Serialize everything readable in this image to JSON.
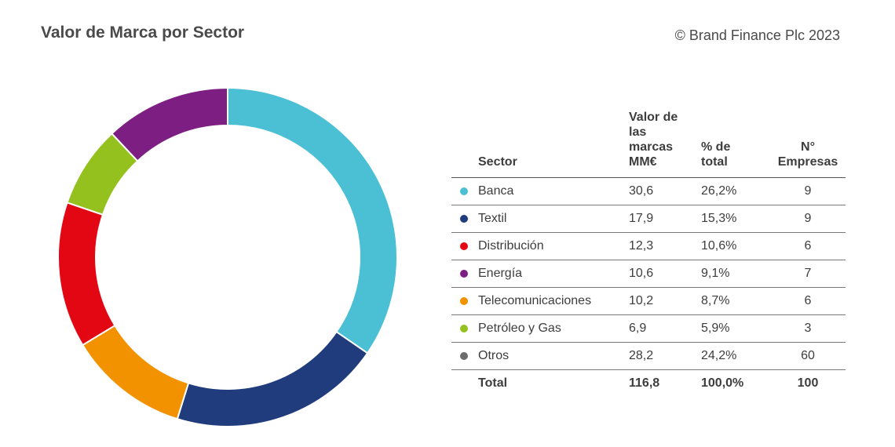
{
  "title": "Valor de Marca por Sector",
  "copyright": "© Brand Finance Plc 2023",
  "table": {
    "headers": {
      "sector": "Sector",
      "valor": "Valor de las marcas MM€",
      "pct": "% de total",
      "empresas": "N° Empresas"
    },
    "rows": [
      {
        "sector": "Banca",
        "valor": "30,6",
        "pct": "26,2%",
        "empresas": "9"
      },
      {
        "sector": "Textil",
        "valor": "17,9",
        "pct": "15,3%",
        "empresas": "9"
      },
      {
        "sector": "Distribución",
        "valor": "12,3",
        "pct": "10,6%",
        "empresas": "6"
      },
      {
        "sector": "Energía",
        "valor": "10,6",
        "pct": "9,1%",
        "empresas": "7"
      },
      {
        "sector": "Telecomunicaciones",
        "valor": "10,2",
        "pct": "8,7%",
        "empresas": "6"
      },
      {
        "sector": "Petróleo y Gas",
        "valor": "6,9",
        "pct": "5,9%",
        "empresas": "3"
      },
      {
        "sector": "Otros",
        "valor": "28,2",
        "pct": "24,2%",
        "empresas": "60"
      }
    ],
    "total": {
      "label": "Total",
      "valor": "116,8",
      "pct": "100,0%",
      "empresas": "100"
    }
  },
  "chart_data": {
    "type": "pie",
    "title": "Valor de Marca por Sector",
    "categories": [
      "Banca",
      "Textil",
      "Distribución",
      "Energía",
      "Telecomunicaciones",
      "Petróleo y Gas",
      "Otros"
    ],
    "values": [
      30.6,
      17.9,
      12.3,
      10.6,
      10.2,
      6.9,
      28.2
    ],
    "percent": [
      26.2,
      15.3,
      10.6,
      9.1,
      8.7,
      5.9,
      24.2
    ],
    "empresas": [
      9,
      9,
      6,
      7,
      6,
      3,
      60
    ],
    "table_colors": [
      "#4bbfd4",
      "#203c7c",
      "#e30613",
      "#7d1f82",
      "#f39200",
      "#95c11f",
      "#6d6d6d"
    ],
    "donut_slices": [
      {
        "label": "Banca",
        "value": 30.6,
        "color": "#4bbfd4"
      },
      {
        "label": "Textil",
        "value": 17.9,
        "color": "#203c7c"
      },
      {
        "label": "Telecomunicaciones",
        "value": 10.2,
        "color": "#f39200"
      },
      {
        "label": "Distribución",
        "value": 12.3,
        "color": "#e30613"
      },
      {
        "label": "Petróleo y Gas",
        "value": 6.9,
        "color": "#95c11f"
      },
      {
        "label": "Energía",
        "value": 10.6,
        "color": "#7d1f82"
      }
    ],
    "legend_placement": "right (table)"
  }
}
